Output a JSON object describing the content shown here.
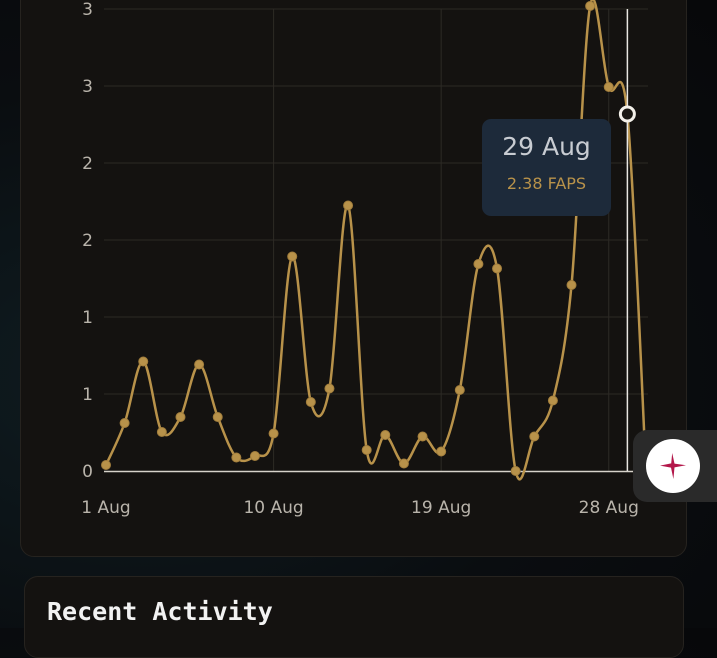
{
  "chart_data": {
    "type": "line",
    "title": "",
    "xlabel": "",
    "ylabel": "",
    "x_tick_labels": [
      "1 Aug",
      "10 Aug",
      "19 Aug",
      "28 Aug"
    ],
    "y_tick_labels": [
      "0",
      "1",
      "1",
      "2",
      "2",
      "3",
      "3"
    ],
    "ylim": [
      0,
      3.1
    ],
    "grid": true,
    "series": [
      {
        "color": "#b8924a",
        "x": [
          "2024-08-01",
          "2024-08-02",
          "2024-08-03",
          "2024-08-04",
          "2024-08-05",
          "2024-08-06",
          "2024-08-07",
          "2024-08-08",
          "2024-08-09",
          "2024-08-10",
          "2024-08-11",
          "2024-08-12",
          "2024-08-13",
          "2024-08-14",
          "2024-08-15",
          "2024-08-16",
          "2024-08-17",
          "2024-08-18",
          "2024-08-19",
          "2024-08-20",
          "2024-08-21",
          "2024-08-22",
          "2024-08-23",
          "2024-08-24",
          "2024-08-25",
          "2024-08-26",
          "2024-08-27",
          "2024-08-28",
          "2024-08-29",
          "2024-08-30"
        ],
        "values": [
          0.04,
          0.32,
          0.73,
          0.26,
          0.36,
          0.71,
          0.36,
          0.09,
          0.1,
          0.25,
          1.43,
          0.46,
          0.55,
          1.77,
          0.14,
          0.24,
          0.05,
          0.23,
          0.13,
          0.54,
          1.38,
          1.35,
          0.0,
          0.23,
          0.47,
          1.24,
          3.1,
          2.56,
          2.38,
          0.0
        ]
      }
    ],
    "highlight": {
      "index": 28,
      "date_label": "29 Aug",
      "value_label": "2.38 FAPS"
    }
  },
  "colors": {
    "line": "#b8924a",
    "tooltip_bg": "#1d2a3a",
    "fab_icon": "#b3174a"
  },
  "fab": {
    "icon": "sparkle-icon"
  },
  "recent_activity": {
    "title": "Recent Activity"
  }
}
